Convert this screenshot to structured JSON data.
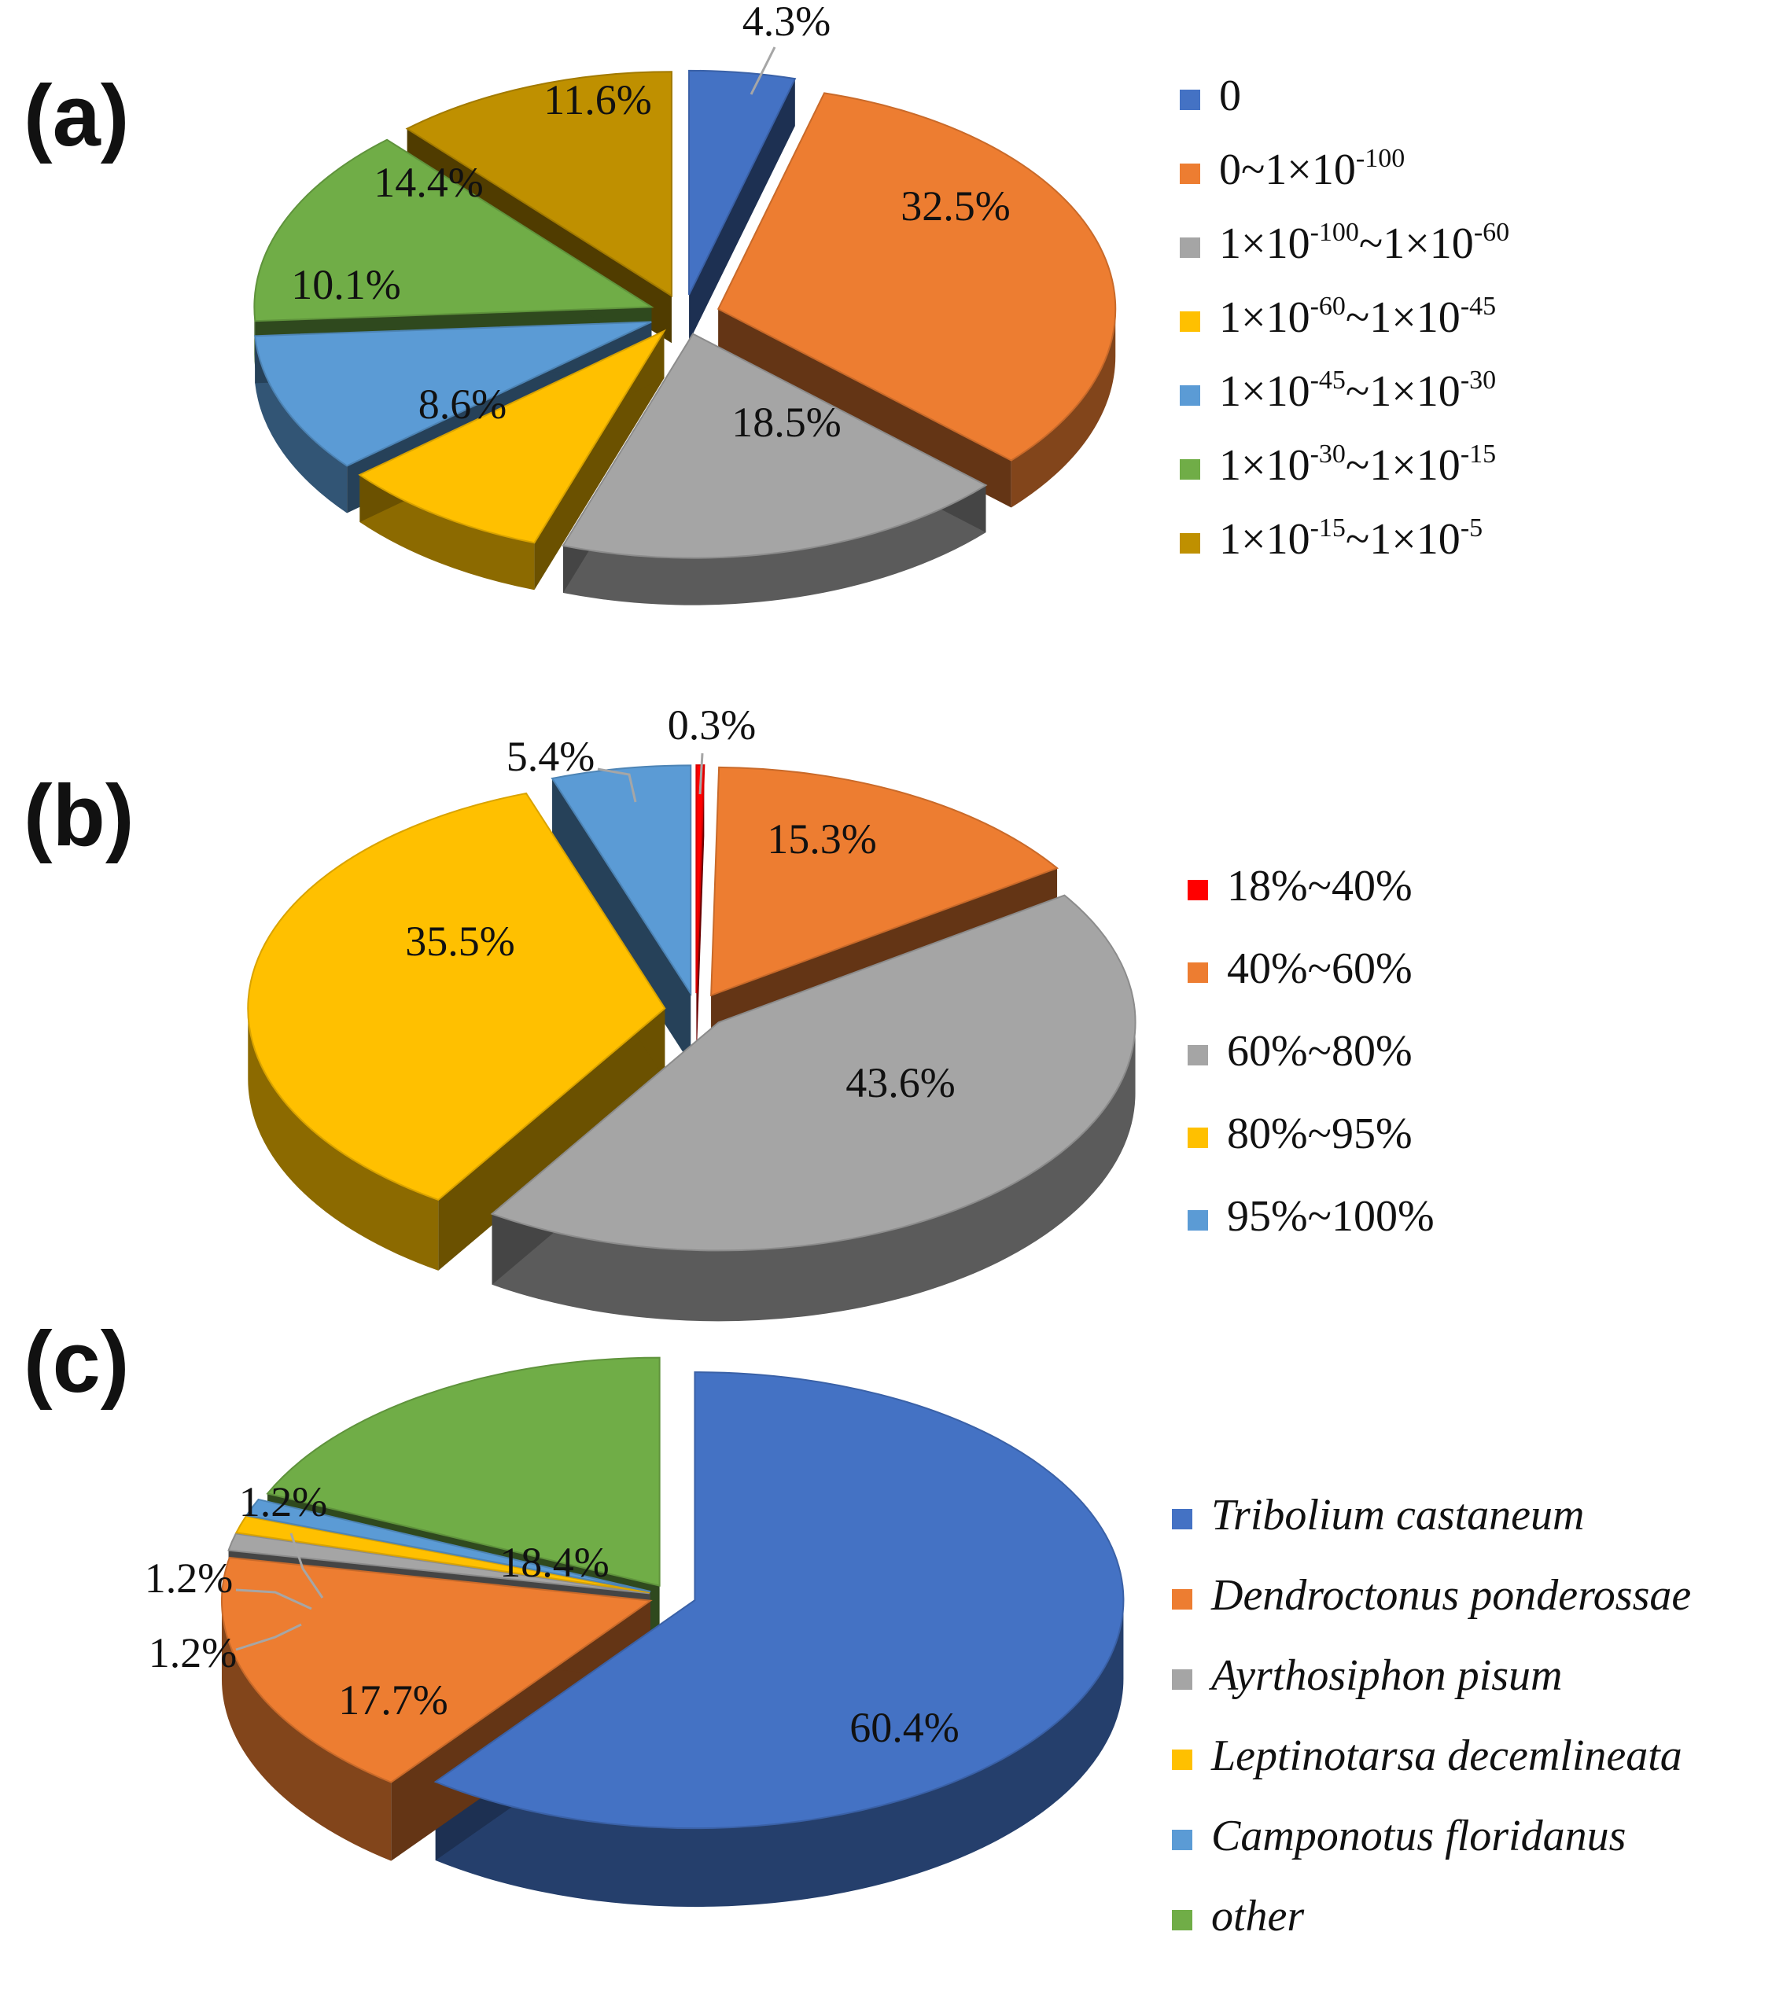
{
  "panels": {
    "a": {
      "label": "(a)"
    },
    "b": {
      "label": "(b)"
    },
    "c": {
      "label": "(c)"
    }
  },
  "chart_data": [
    {
      "id": "a",
      "type": "pie",
      "style": "exploded-3d",
      "title": "(a)",
      "legend_position": "right",
      "categories": [
        "0",
        "0~1×10-100",
        "1×10-100~1×10-60",
        "1×10-60~1×10-45",
        "1×10-45~1×10-30",
        "1×10-30~1×10-15",
        "1×10-15~1×10-5"
      ],
      "legend": [
        {
          "text": "0",
          "parts": [
            {
              "t": "0",
              "sup": false
            }
          ]
        },
        {
          "text": "0~1×10-100",
          "parts": [
            {
              "t": "0~1×10",
              "sup": false
            },
            {
              "t": "-100",
              "sup": true
            }
          ]
        },
        {
          "text": "1×10-100~1×10-60",
          "parts": [
            {
              "t": "1×10",
              "sup": false
            },
            {
              "t": "-100",
              "sup": true
            },
            {
              "t": "~1×10",
              "sup": false
            },
            {
              "t": "-60",
              "sup": true
            }
          ]
        },
        {
          "text": "1×10-60~1×10-45",
          "parts": [
            {
              "t": "1×10",
              "sup": false
            },
            {
              "t": "-60",
              "sup": true
            },
            {
              "t": "~1×10",
              "sup": false
            },
            {
              "t": "-45",
              "sup": true
            }
          ]
        },
        {
          "text": "1×10-45~1×10-30",
          "parts": [
            {
              "t": "1×10",
              "sup": false
            },
            {
              "t": "-45",
              "sup": true
            },
            {
              "t": "~1×10",
              "sup": false
            },
            {
              "t": "-30",
              "sup": true
            }
          ]
        },
        {
          "text": "1×10-30~1×10-15",
          "parts": [
            {
              "t": "1×10",
              "sup": false
            },
            {
              "t": "-30",
              "sup": true
            },
            {
              "t": "~1×10",
              "sup": false
            },
            {
              "t": "-15",
              "sup": true
            }
          ]
        },
        {
          "text": "1×10-15~1×10-5",
          "parts": [
            {
              "t": "1×10",
              "sup": false
            },
            {
              "t": "-15",
              "sup": true
            },
            {
              "t": "~1×10",
              "sup": false
            },
            {
              "t": "-5",
              "sup": true
            }
          ]
        }
      ],
      "values": [
        4.3,
        32.5,
        18.5,
        8.6,
        10.1,
        14.4,
        11.6
      ],
      "labels": [
        "4.3%",
        "32.5%",
        "18.5%",
        "8.6%",
        "10.1%",
        "14.4%",
        "11.6%"
      ],
      "colors": [
        "#4472c4",
        "#ed7d31",
        "#a5a5a5",
        "#ffc000",
        "#5b9bd5",
        "#70ad47",
        "#bf9000"
      ]
    },
    {
      "id": "b",
      "type": "pie",
      "style": "exploded-3d",
      "title": "(b)",
      "legend_position": "right",
      "categories": [
        "18%~40%",
        "40%~60%",
        "60%~80%",
        "80%~95%",
        "95%~100%"
      ],
      "legend": [
        {
          "text": "18%~40%",
          "parts": [
            {
              "t": "18%~40%",
              "sup": false
            }
          ]
        },
        {
          "text": "40%~60%",
          "parts": [
            {
              "t": "40%~60%",
              "sup": false
            }
          ]
        },
        {
          "text": "60%~80%",
          "parts": [
            {
              "t": "60%~80%",
              "sup": false
            }
          ]
        },
        {
          "text": "80%~95%",
          "parts": [
            {
              "t": "80%~95%",
              "sup": false
            }
          ]
        },
        {
          "text": "95%~100%",
          "parts": [
            {
              "t": "95%~100%",
              "sup": false
            }
          ]
        }
      ],
      "values": [
        0.3,
        15.3,
        43.6,
        35.5,
        5.4
      ],
      "labels": [
        "0.3%",
        "15.3%",
        "43.6%",
        "35.5%",
        "5.4%"
      ],
      "colors": [
        "#ff0000",
        "#ed7d31",
        "#a5a5a5",
        "#ffc000",
        "#5b9bd5"
      ]
    },
    {
      "id": "c",
      "type": "pie",
      "style": "exploded-3d",
      "title": "(c)",
      "legend_position": "right",
      "categories": [
        "Tribolium castaneum",
        "Dendroctonus ponderossae",
        "Ayrthosiphon pisum",
        "Leptinotarsa decemlineata",
        "Camponotus floridanus",
        "other"
      ],
      "legend": [
        {
          "text": "Tribolium castaneum",
          "parts": [
            {
              "t": "Tribolium castaneum",
              "sup": false
            }
          ]
        },
        {
          "text": "Dendroctonus ponderossae",
          "parts": [
            {
              "t": "Dendroctonus ponderossae",
              "sup": false
            }
          ]
        },
        {
          "text": "Ayrthosiphon pisum",
          "parts": [
            {
              "t": "Ayrthosiphon pisum",
              "sup": false
            }
          ]
        },
        {
          "text": "Leptinotarsa decemlineata",
          "parts": [
            {
              "t": "Leptinotarsa decemlineata",
              "sup": false
            }
          ]
        },
        {
          "text": "Camponotus floridanus",
          "parts": [
            {
              "t": "Camponotus floridanus",
              "sup": false
            }
          ]
        },
        {
          "text": "other",
          "parts": [
            {
              "t": "other",
              "sup": false
            }
          ]
        }
      ],
      "values": [
        60.4,
        17.7,
        1.2,
        1.2,
        1.2,
        18.4
      ],
      "labels": [
        "60.4%",
        "17.7%",
        "1.2%",
        "1.2%",
        "1.2%",
        "18.4%"
      ],
      "colors": [
        "#4472c4",
        "#ed7d31",
        "#a5a5a5",
        "#ffc000",
        "#5b9bd5",
        "#70ad47"
      ]
    }
  ]
}
